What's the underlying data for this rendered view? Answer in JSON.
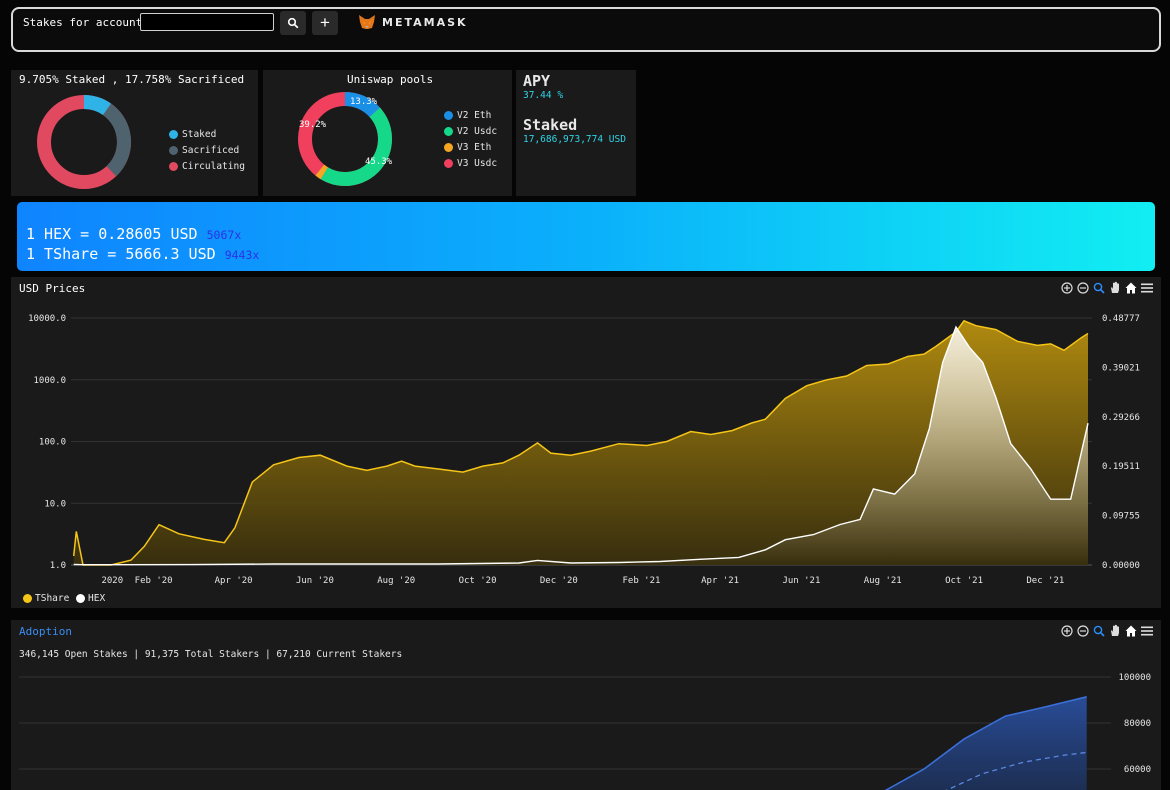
{
  "header": {
    "account_label": "Stakes for account:",
    "account_value": "",
    "search_icon": "search-icon",
    "add_label": "+",
    "metamask_label": "METAMASK"
  },
  "supply_card": {
    "title": "9.705% Staked , 17.758% Sacrificed",
    "legend": [
      {
        "label": "Staked",
        "color": "#2fb3e6"
      },
      {
        "label": "Sacrificed",
        "color": "#4f636f"
      },
      {
        "label": "Circulating",
        "color": "#e0495f"
      }
    ]
  },
  "pools_card": {
    "title": "Uniswap pools",
    "slice_labels": [
      "13.3%",
      "45.3%",
      "39.2%"
    ],
    "legend": [
      {
        "label": "V2 Eth",
        "color": "#1a8fe6"
      },
      {
        "label": "V2 Usdc",
        "color": "#15d889"
      },
      {
        "label": "V3 Eth",
        "color": "#f5a623"
      },
      {
        "label": "V3 Usdc",
        "color": "#f0405d"
      }
    ]
  },
  "apy_card": {
    "apy_title": "APY",
    "apy_value": "37.44 %",
    "staked_title": "Staked",
    "staked_value": "17,686,973,774 USD"
  },
  "banner": {
    "hex_price": "1 HEX = 0.28605 USD",
    "hex_mult": "5067x",
    "tshare_price": "1 TShare = 5666.3 USD",
    "tshare_mult": "9443x"
  },
  "price_panel": {
    "title": "USD Prices",
    "toolbar_icons": [
      "zoom-in-icon",
      "zoom-out-icon",
      "magnifier-icon",
      "pan-hand-icon",
      "home-icon",
      "menu-icon"
    ],
    "legend": [
      {
        "label": "TShare",
        "color": "#f5c518"
      },
      {
        "label": "HEX",
        "color": "#ffffff"
      }
    ]
  },
  "adoption_panel": {
    "title": "Adoption",
    "stats": "346,145 Open Stakes | 91,375 Total Stakers | 67,210 Current Stakers"
  },
  "chart_data": [
    {
      "type": "area",
      "title": "USD Prices",
      "x_ticks": [
        "2020",
        "Feb '20",
        "Apr '20",
        "Jun '20",
        "Aug '20",
        "Oct '20",
        "Dec '20",
        "Feb '21",
        "Apr '21",
        "Jun '21",
        "Aug '21",
        "Oct '21",
        "Dec '21"
      ],
      "y_left_ticks": [
        "10000.0",
        "1000.0",
        "100.0",
        "10.0",
        "1.0"
      ],
      "y_left_scale": "log",
      "y_left_range": [
        1,
        10000
      ],
      "y_right_ticks": [
        "0.48777",
        "0.39021",
        "0.29266",
        "0.19511",
        "0.09755",
        "0.00000"
      ],
      "y_right_range": [
        0,
        0.48777
      ],
      "series": [
        {
          "name": "TShare",
          "color": "#f5c518",
          "axis": "left",
          "points": [
            [
              "2019-12-03",
              1.4
            ],
            [
              "2019-12-05",
              3.5
            ],
            [
              "2019-12-10",
              1.0
            ],
            [
              "2019-12-31",
              1.0
            ],
            [
              "2020-01-15",
              1.2
            ],
            [
              "2020-01-25",
              2.0
            ],
            [
              "2020-02-05",
              4.5
            ],
            [
              "2020-02-20",
              3.2
            ],
            [
              "2020-03-10",
              2.6
            ],
            [
              "2020-03-25",
              2.3
            ],
            [
              "2020-04-02",
              4.0
            ],
            [
              "2020-04-15",
              22
            ],
            [
              "2020-05-01",
              42
            ],
            [
              "2020-05-20",
              55
            ],
            [
              "2020-06-05",
              60
            ],
            [
              "2020-06-25",
              40
            ],
            [
              "2020-07-10",
              34
            ],
            [
              "2020-07-25",
              40
            ],
            [
              "2020-08-05",
              48
            ],
            [
              "2020-08-15",
              40
            ],
            [
              "2020-09-01",
              36
            ],
            [
              "2020-09-20",
              32
            ],
            [
              "2020-10-05",
              40
            ],
            [
              "2020-10-20",
              45
            ],
            [
              "2020-11-01",
              60
            ],
            [
              "2020-11-15",
              95
            ],
            [
              "2020-11-25",
              65
            ],
            [
              "2020-12-10",
              60
            ],
            [
              "2020-12-25",
              70
            ],
            [
              "2021-01-15",
              92
            ],
            [
              "2021-02-05",
              86
            ],
            [
              "2021-02-20",
              100
            ],
            [
              "2021-03-10",
              145
            ],
            [
              "2021-03-25",
              130
            ],
            [
              "2021-04-10",
              150
            ],
            [
              "2021-04-25",
              200
            ],
            [
              "2021-05-05",
              230
            ],
            [
              "2021-05-20",
              500
            ],
            [
              "2021-06-05",
              800
            ],
            [
              "2021-06-20",
              1000
            ],
            [
              "2021-07-05",
              1150
            ],
            [
              "2021-07-20",
              1700
            ],
            [
              "2021-08-05",
              1800
            ],
            [
              "2021-08-20",
              2400
            ],
            [
              "2021-09-01",
              2600
            ],
            [
              "2021-09-10",
              3500
            ],
            [
              "2021-09-25",
              6000
            ],
            [
              "2021-10-01",
              9000
            ],
            [
              "2021-10-10",
              7500
            ],
            [
              "2021-10-25",
              6500
            ],
            [
              "2021-11-10",
              4200
            ],
            [
              "2021-11-25",
              3600
            ],
            [
              "2021-12-05",
              3800
            ],
            [
              "2021-12-15",
              3000
            ],
            [
              "2021-12-28",
              4800
            ],
            [
              "2022-01-02",
              5600
            ]
          ]
        },
        {
          "name": "HEX",
          "color": "#ffffff",
          "axis": "right",
          "points": [
            [
              "2019-12-03",
              0.001
            ],
            [
              "2019-12-10",
              0.0005
            ],
            [
              "2019-12-31",
              0.0005
            ],
            [
              "2020-03-01",
              0.0008
            ],
            [
              "2020-05-01",
              0.002
            ],
            [
              "2020-07-01",
              0.002
            ],
            [
              "2020-09-01",
              0.002
            ],
            [
              "2020-11-01",
              0.004
            ],
            [
              "2020-11-15",
              0.009
            ],
            [
              "2020-12-10",
              0.004
            ],
            [
              "2021-01-15",
              0.005
            ],
            [
              "2021-02-15",
              0.007
            ],
            [
              "2021-03-15",
              0.011
            ],
            [
              "2021-04-15",
              0.015
            ],
            [
              "2021-05-05",
              0.03
            ],
            [
              "2021-05-20",
              0.05
            ],
            [
              "2021-06-10",
              0.06
            ],
            [
              "2021-06-30",
              0.08
            ],
            [
              "2021-07-15",
              0.09
            ],
            [
              "2021-07-25",
              0.15
            ],
            [
              "2021-08-10",
              0.14
            ],
            [
              "2021-08-25",
              0.18
            ],
            [
              "2021-09-05",
              0.27
            ],
            [
              "2021-09-15",
              0.4
            ],
            [
              "2021-09-25",
              0.47
            ],
            [
              "2021-10-05",
              0.43
            ],
            [
              "2021-10-15",
              0.4
            ],
            [
              "2021-10-25",
              0.33
            ],
            [
              "2021-11-05",
              0.24
            ],
            [
              "2021-11-20",
              0.19
            ],
            [
              "2021-12-05",
              0.13
            ],
            [
              "2021-12-20",
              0.13
            ],
            [
              "2022-01-02",
              0.28
            ]
          ]
        }
      ],
      "legend_position": "bottom-left",
      "grid": true
    },
    {
      "type": "area",
      "title": "Adoption",
      "y_ticks": [
        "100000",
        "80000",
        "60000"
      ],
      "y_range": [
        50000,
        100000
      ],
      "series": [
        {
          "name": "",
          "color": "#3b6fd8",
          "points": [
            [
              "2021-08-01",
              50000
            ],
            [
              "2021-09-01",
              60000
            ],
            [
              "2021-10-01",
              73000
            ],
            [
              "2021-11-01",
              83000
            ],
            [
              "2021-12-01",
              87000
            ],
            [
              "2022-01-01",
              91375
            ]
          ]
        },
        {
          "name": "",
          "color": "#3b6fd8",
          "style": "dashed",
          "points": [
            [
              "2021-09-15",
              50000
            ],
            [
              "2021-10-15",
              58000
            ],
            [
              "2021-11-15",
              63000
            ],
            [
              "2021-12-15",
              66000
            ],
            [
              "2022-01-01",
              67210
            ]
          ]
        }
      ]
    }
  ]
}
